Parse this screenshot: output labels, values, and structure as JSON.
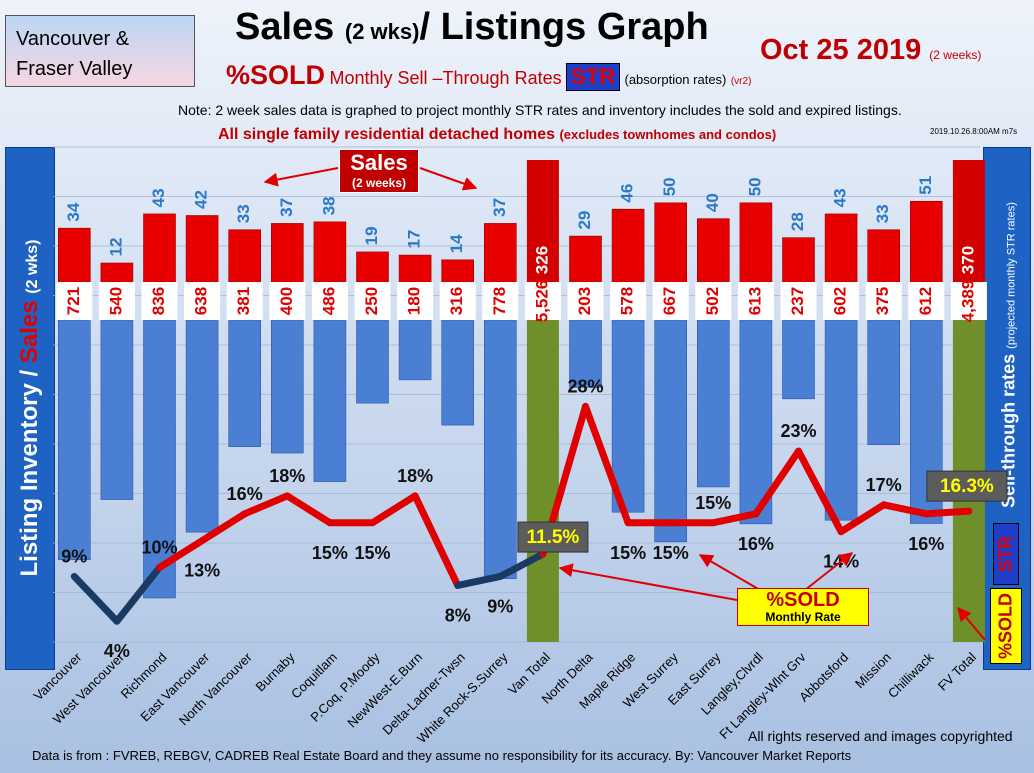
{
  "header": {
    "region_line1": "Vancouver &",
    "region_line2": "Fraser Valley",
    "title_a": "Sales",
    "title_b": "(2 wks)",
    "title_c": "/ Listings Graph",
    "date": "Oct 25 2019",
    "date_note": "(2 weeks)",
    "sold_label": "%SOLD",
    "sell_through": "Monthly Sell –Through Rates",
    "str_tag": "STR",
    "absorption": "(absorption rates)",
    "version": "(vr2)",
    "note": "Note: 2 week sales data is graphed to project monthly STR rates and inventory includes the sold and expired listings.",
    "detached_a": "All single family residential detached homes",
    "detached_b": "(excludes townhomes and condos)",
    "stamp": "2019.10.26.8:00AM m7s"
  },
  "side": {
    "left_a": "Listing Inventory /",
    "left_b": "Sales",
    "left_c": "(2  wks)",
    "right_a": "Sell-through rates",
    "right_b": "(projected monthly STR rates)",
    "str_vert": "STR",
    "sold_vert": "%SOLD"
  },
  "callouts": {
    "sales_title": "Sales",
    "sales_sub": "(2 weeks)",
    "sold_title": "%SOLD",
    "sold_sub": "Monthly Rate"
  },
  "footer": {
    "rights": "All rights reserved and  images copyrighted",
    "source": "Data is from : FVREB, REBGV, CADREB Real Estate Board and they assume no responsibility for its accuracy. By: Vancouver Market Reports"
  },
  "colors": {
    "inventory_bar": "#4a7fd4",
    "sales_bar": "#e80000",
    "total_bar": "#6f8f2a",
    "line_high": "#e00000",
    "line_low": "#1b3a63"
  },
  "chart_data": {
    "type": "bar",
    "categories": [
      "Vancouver",
      "West Vancouver",
      "Richmond",
      "East Vancouver",
      "North Vancouver",
      "Burnaby",
      "Coquitlam",
      "P.Coq, P.Moody",
      "NewWest-E.Burn",
      "Delta-Ladner-Twsn",
      "White Rock-S.Surrey",
      "Van Total",
      "North Delta",
      "Maple Ridge",
      "West Surrey",
      "East Surrey",
      "Langley,Clvrdl",
      "Ft Langley-Wlnt Grv",
      "Abbotsford",
      "Mission",
      "Chilliwack",
      "FV Total"
    ],
    "series": [
      {
        "name": "Sales",
        "values": [
          34,
          12,
          43,
          42,
          33,
          37,
          38,
          19,
          17,
          14,
          37,
          326,
          29,
          46,
          50,
          40,
          50,
          28,
          43,
          33,
          51,
          370
        ]
      },
      {
        "name": "Listing Inventory",
        "values": [
          "721",
          "540",
          "836",
          "638",
          "381",
          "400",
          "486",
          "250",
          "180",
          "316",
          "778",
          "5,526",
          "203",
          "578",
          "667",
          "502",
          "613",
          "237",
          "602",
          "375",
          "612",
          "4,389"
        ]
      },
      {
        "name": "%SOLD",
        "values": [
          "9%",
          "4%",
          "10%",
          "13%",
          "16%",
          "18%",
          "15%",
          "15%",
          "18%",
          "8%",
          "9%",
          "11.5%",
          "28%",
          "15%",
          "15%",
          "15%",
          "16%",
          "23%",
          "14%",
          "17%",
          "16%",
          "16.3%"
        ]
      }
    ],
    "inventory_numeric": [
      721,
      540,
      836,
      638,
      381,
      400,
      486,
      250,
      180,
      316,
      778,
      5526,
      203,
      578,
      667,
      502,
      613,
      237,
      602,
      375,
      612,
      4389
    ],
    "str_numeric": [
      9,
      4,
      10,
      13,
      16,
      18,
      15,
      15,
      18,
      8,
      9,
      11.5,
      28,
      15,
      15,
      15,
      16,
      23,
      14,
      17,
      16,
      16.3
    ],
    "total_indices": [
      11,
      21
    ],
    "xlabel": "",
    "ylabel": ""
  }
}
